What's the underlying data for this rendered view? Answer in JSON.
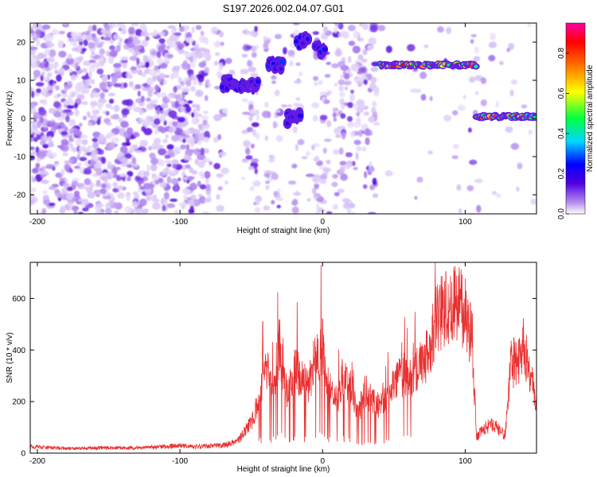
{
  "title": "S197.2026.002.04.07.G01",
  "chart_data": [
    {
      "type": "heatmap",
      "title": "S197.2026.002.04.07.G01",
      "xlabel": "Height of straight line (km)",
      "ylabel": "Frequency (Hz)",
      "xlim": [
        -205,
        150
      ],
      "ylim": [
        -25,
        25
      ],
      "x_ticks": [
        -200,
        -100,
        0,
        100
      ],
      "y_ticks": [
        -20,
        -10,
        0,
        10,
        20
      ],
      "grid": false,
      "colorbar": {
        "label": "Normalized spectral amplitude",
        "range": [
          0.0,
          0.95
        ],
        "ticks": [
          0.0,
          0.2,
          0.4,
          0.6,
          0.8
        ],
        "colormap": [
          "#ffffff",
          "#b48cf0",
          "#5000e0",
          "#0000ff",
          "#00d8ff",
          "#00ff40",
          "#ffff00",
          "#ff7000",
          "#ff0000",
          "#ff00a0"
        ]
      },
      "signal_tracks": [
        {
          "x_start": -70,
          "x_end": -45,
          "freq": 9,
          "amplitude": 0.3
        },
        {
          "x_start": -38,
          "x_end": -28,
          "freq": 14,
          "amplitude": 0.35
        },
        {
          "x_start": -25,
          "x_end": -15,
          "freq": 0,
          "amplitude": 0.35
        },
        {
          "x_start": -18,
          "x_end": -10,
          "freq": 20,
          "amplitude": 0.4
        },
        {
          "x_start": -5,
          "x_end": 2,
          "freq": 18,
          "amplitude": 0.4
        },
        {
          "x_start": 40,
          "x_end": 108,
          "freq": 14,
          "amplitude": 0.85
        },
        {
          "x_start": 108,
          "x_end": 150,
          "freq": 0.5,
          "amplitude": 0.8
        }
      ]
    },
    {
      "type": "line",
      "title": "",
      "xlabel": "Height of straight line (km)",
      "ylabel": "SNR (10 * v/v)",
      "xlim": [
        -205,
        150
      ],
      "ylim": [
        0,
        740
      ],
      "x_ticks": [
        -200,
        -100,
        0,
        100
      ],
      "y_ticks": [
        0,
        200,
        400,
        600
      ],
      "grid": false,
      "series": [
        {
          "name": "SNR",
          "color": "#e83030",
          "x": [
            -205,
            -190,
            -170,
            -150,
            -130,
            -110,
            -100,
            -90,
            -80,
            -70,
            -60,
            -50,
            -45,
            -40,
            -35,
            -30,
            -25,
            -20,
            -15,
            -10,
            -5,
            -2,
            0,
            2,
            5,
            10,
            15,
            20,
            25,
            30,
            35,
            40,
            45,
            50,
            55,
            60,
            65,
            70,
            75,
            80,
            85,
            90,
            95,
            100,
            105,
            108,
            112,
            118,
            122,
            128,
            132,
            138,
            140,
            143,
            146,
            150
          ],
          "values": [
            25,
            20,
            18,
            22,
            20,
            25,
            30,
            25,
            28,
            30,
            40,
            120,
            200,
            350,
            250,
            420,
            200,
            320,
            300,
            250,
            380,
            350,
            450,
            300,
            250,
            200,
            300,
            250,
            150,
            250,
            200,
            180,
            220,
            260,
            300,
            280,
            320,
            350,
            400,
            520,
            560,
            580,
            570,
            550,
            430,
            60,
            90,
            110,
            100,
            70,
            340,
            370,
            420,
            380,
            300,
            200
          ]
        }
      ],
      "spikes": [
        {
          "x": -1,
          "value": 730
        },
        {
          "x": 79,
          "value": 740
        },
        {
          "x": -42,
          "value": 510
        },
        {
          "x": -30,
          "value": 520
        }
      ]
    }
  ]
}
